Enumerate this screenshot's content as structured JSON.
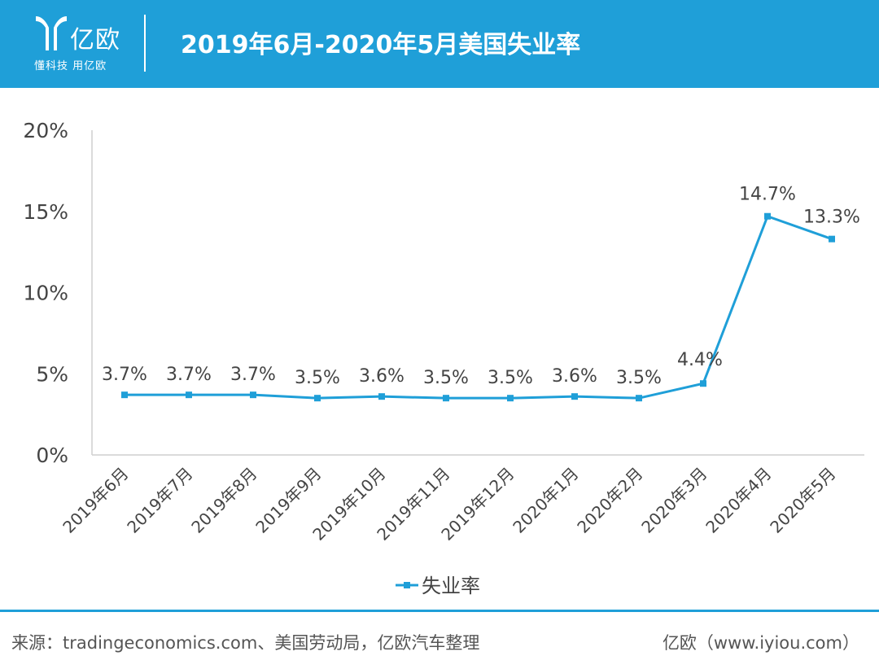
{
  "header": {
    "logo_name": "亿欧",
    "logo_slogan": "懂科技 用亿欧",
    "title": "2019年6月-2020年5月美国失业率",
    "accent_color": "#1f9fd8"
  },
  "chart_data": {
    "type": "line",
    "title": "2019年6月-2020年5月美国失业率",
    "categories": [
      "2019年6月",
      "2019年7月",
      "2019年8月",
      "2019年9月",
      "2019年10月",
      "2019年11月",
      "2019年12月",
      "2020年1月",
      "2020年2月",
      "2020年3月",
      "2020年4月",
      "2020年5月"
    ],
    "series": [
      {
        "name": "失业率",
        "values": [
          3.7,
          3.7,
          3.7,
          3.5,
          3.6,
          3.5,
          3.5,
          3.6,
          3.5,
          4.4,
          14.7,
          13.3
        ],
        "labels": [
          "3.7%",
          "3.7%",
          "3.7%",
          "3.5%",
          "3.6%",
          "3.5%",
          "3.5%",
          "3.6%",
          "3.5%",
          "4.4%",
          "14.7%",
          "13.3%"
        ],
        "color": "#1f9fd8"
      }
    ],
    "yticks": [
      "0%",
      "5%",
      "10%",
      "15%",
      "20%"
    ],
    "ylim": [
      0,
      20
    ],
    "grid": false,
    "legend_position": "bottom"
  },
  "footer": {
    "source": "来源：tradingeconomics.com、美国劳动局，亿欧汽车整理",
    "brand": "亿欧（www.iyiou.com）"
  }
}
